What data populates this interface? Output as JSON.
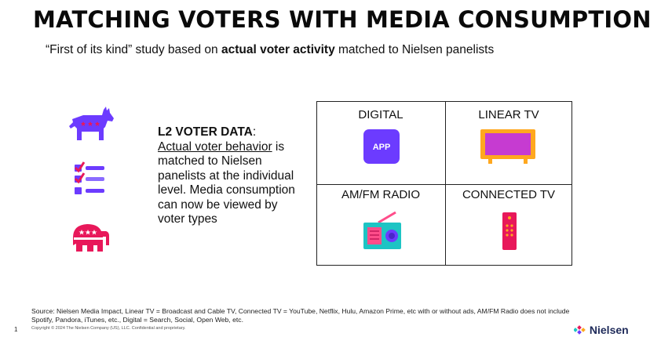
{
  "slide": {
    "title": "MATCHING VOTERS WITH MEDIA CONSUMPTION",
    "subtitle_pre": "“First of its kind” study based on ",
    "subtitle_bold": "actual voter activity",
    "subtitle_post": " matched to Nielsen panelists"
  },
  "l2": {
    "heading": "L2 VOTER DATA",
    "colon": ":",
    "underlined": "Actual voter behavior",
    "rest": " is matched to Nielsen panelists at the individual level. Media consumption can now be viewed by voter types"
  },
  "grid": {
    "digital": "DIGITAL",
    "app_label": "APP",
    "linear_tv": "LINEAR TV",
    "radio": "AM/FM RADIO",
    "connected_tv": "CONNECTED TV"
  },
  "footer": {
    "source": "Source: Nielsen Media Impact, Linear TV = Broadcast and Cable TV, Connected TV = YouTube, Netflix, Hulu, Amazon Prime, etc with or without ads, AM/FM Radio does not include Spotify, Pandora, iTunes, etc., Digital = Search, Social, Open Web, etc.",
    "copyright": "Copyright © 2024 The Nielsen Company (US), LLC. Confidential and proprietary.",
    "page_number": "1",
    "logo": "Nielsen"
  },
  "colors": {
    "purple": "#6c3bff",
    "pink": "#e8185a",
    "magenta": "#c63bd1",
    "orange": "#ffa81f",
    "teal": "#1dc4c4",
    "navy": "#1f2b5a"
  },
  "icons": [
    "donkey-icon",
    "checklist-icon",
    "elephant-icon",
    "app-icon",
    "tv-icon",
    "radio-icon",
    "remote-icon",
    "nielsen-logo-icon"
  ]
}
